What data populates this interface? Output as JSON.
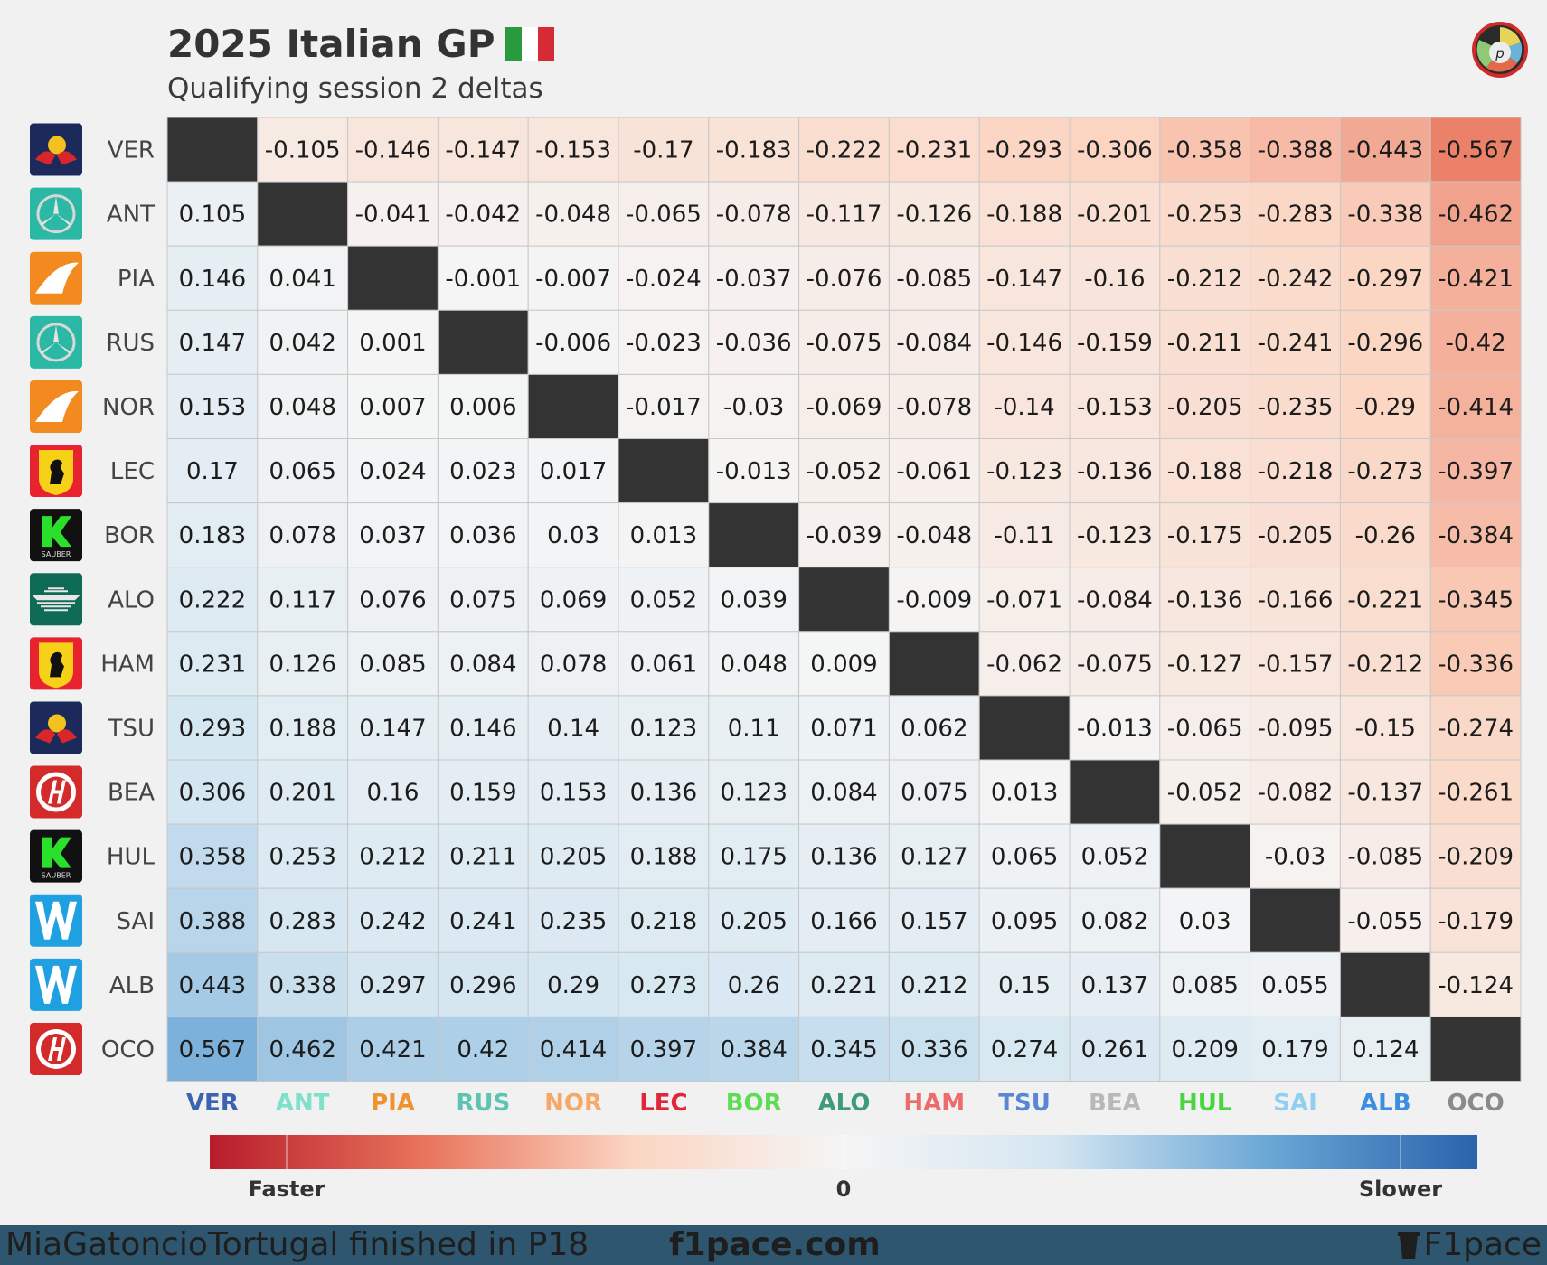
{
  "header": {
    "title": "2025 Italian GP",
    "subtitle": "Qualifying session 2 deltas",
    "flag_colors": [
      "#2a9a3e",
      "#ffffff",
      "#d42b35"
    ]
  },
  "chart_data": {
    "type": "heatmap",
    "title": "2025 Italian GP",
    "subtitle": "Qualifying session 2 deltas",
    "rows": [
      {
        "driver": "VER",
        "team_icon": "red-bull-icon"
      },
      {
        "driver": "ANT",
        "team_icon": "mercedes-icon"
      },
      {
        "driver": "PIA",
        "team_icon": "mclaren-icon"
      },
      {
        "driver": "RUS",
        "team_icon": "mercedes-icon"
      },
      {
        "driver": "NOR",
        "team_icon": "mclaren-icon"
      },
      {
        "driver": "LEC",
        "team_icon": "ferrari-icon"
      },
      {
        "driver": "BOR",
        "team_icon": "sauber-icon"
      },
      {
        "driver": "ALO",
        "team_icon": "aston-martin-icon"
      },
      {
        "driver": "HAM",
        "team_icon": "ferrari-icon"
      },
      {
        "driver": "TSU",
        "team_icon": "red-bull-icon"
      },
      {
        "driver": "BEA",
        "team_icon": "haas-icon"
      },
      {
        "driver": "HUL",
        "team_icon": "sauber-icon"
      },
      {
        "driver": "SAI",
        "team_icon": "williams-icon"
      },
      {
        "driver": "ALB",
        "team_icon": "williams-icon"
      },
      {
        "driver": "OCO",
        "team_icon": "haas-icon"
      }
    ],
    "columns": [
      {
        "driver": "VER",
        "color": "#3b64b0"
      },
      {
        "driver": "ANT",
        "color": "#7fe0cc"
      },
      {
        "driver": "PIA",
        "color": "#f0922e"
      },
      {
        "driver": "RUS",
        "color": "#5ec4b0"
      },
      {
        "driver": "NOR",
        "color": "#f5a867"
      },
      {
        "driver": "LEC",
        "color": "#e0263a"
      },
      {
        "driver": "BOR",
        "color": "#5fdc55"
      },
      {
        "driver": "ALO",
        "color": "#3f9a7a"
      },
      {
        "driver": "HAM",
        "color": "#ee6b6b"
      },
      {
        "driver": "TSU",
        "color": "#5a86d6"
      },
      {
        "driver": "BEA",
        "color": "#b8b8b8"
      },
      {
        "driver": "HUL",
        "color": "#48d640"
      },
      {
        "driver": "SAI",
        "color": "#8fd0f0"
      },
      {
        "driver": "ALB",
        "color": "#3c8fe0"
      },
      {
        "driver": "OCO",
        "color": "#8a8a8a"
      }
    ],
    "values": [
      [
        null,
        -0.105,
        -0.146,
        -0.147,
        -0.153,
        -0.17,
        -0.183,
        -0.222,
        -0.231,
        -0.293,
        -0.306,
        -0.358,
        -0.388,
        -0.443,
        -0.567
      ],
      [
        0.105,
        null,
        -0.041,
        -0.042,
        -0.048,
        -0.065,
        -0.078,
        -0.117,
        -0.126,
        -0.188,
        -0.201,
        -0.253,
        -0.283,
        -0.338,
        -0.462
      ],
      [
        0.146,
        0.041,
        null,
        -0.001,
        -0.007,
        -0.024,
        -0.037,
        -0.076,
        -0.085,
        -0.147,
        -0.16,
        -0.212,
        -0.242,
        -0.297,
        -0.421
      ],
      [
        0.147,
        0.042,
        0.001,
        null,
        -0.006,
        -0.023,
        -0.036,
        -0.075,
        -0.084,
        -0.146,
        -0.159,
        -0.211,
        -0.241,
        -0.296,
        -0.42
      ],
      [
        0.153,
        0.048,
        0.007,
        0.006,
        null,
        -0.017,
        -0.03,
        -0.069,
        -0.078,
        -0.14,
        -0.153,
        -0.205,
        -0.235,
        -0.29,
        -0.414
      ],
      [
        0.17,
        0.065,
        0.024,
        0.023,
        0.017,
        null,
        -0.013,
        -0.052,
        -0.061,
        -0.123,
        -0.136,
        -0.188,
        -0.218,
        -0.273,
        -0.397
      ],
      [
        0.183,
        0.078,
        0.037,
        0.036,
        0.03,
        0.013,
        null,
        -0.039,
        -0.048,
        -0.11,
        -0.123,
        -0.175,
        -0.205,
        -0.26,
        -0.384
      ],
      [
        0.222,
        0.117,
        0.076,
        0.075,
        0.069,
        0.052,
        0.039,
        null,
        -0.009,
        -0.071,
        -0.084,
        -0.136,
        -0.166,
        -0.221,
        -0.345
      ],
      [
        0.231,
        0.126,
        0.085,
        0.084,
        0.078,
        0.061,
        0.048,
        0.009,
        null,
        -0.062,
        -0.075,
        -0.127,
        -0.157,
        -0.212,
        -0.336
      ],
      [
        0.293,
        0.188,
        0.147,
        0.146,
        0.14,
        0.123,
        0.11,
        0.071,
        0.062,
        null,
        -0.013,
        -0.065,
        -0.095,
        -0.15,
        -0.274
      ],
      [
        0.306,
        0.201,
        0.16,
        0.159,
        0.153,
        0.136,
        0.123,
        0.084,
        0.075,
        0.013,
        null,
        -0.052,
        -0.082,
        -0.137,
        -0.261
      ],
      [
        0.358,
        0.253,
        0.212,
        0.211,
        0.205,
        0.188,
        0.175,
        0.136,
        0.127,
        0.065,
        0.052,
        null,
        -0.03,
        -0.085,
        -0.209
      ],
      [
        0.388,
        0.283,
        0.242,
        0.241,
        0.235,
        0.218,
        0.205,
        0.166,
        0.157,
        0.095,
        0.082,
        0.03,
        null,
        -0.055,
        -0.179
      ],
      [
        0.443,
        0.338,
        0.297,
        0.296,
        0.29,
        0.273,
        0.26,
        0.221,
        0.212,
        0.15,
        0.137,
        0.085,
        0.055,
        null,
        -0.124
      ],
      [
        0.567,
        0.462,
        0.421,
        0.42,
        0.414,
        0.397,
        0.384,
        0.345,
        0.336,
        0.274,
        0.261,
        0.209,
        0.179,
        0.124,
        null
      ]
    ],
    "color_range": [
      -0.567,
      0.567
    ],
    "diagonal_color": "#333333",
    "colorbar": {
      "labels": [
        {
          "text": "Faster",
          "value": -0.567
        },
        {
          "text": "0",
          "value": 0
        },
        {
          "text": "Slower",
          "value": 0.567
        }
      ],
      "stops": [
        "#b71c2c",
        "#e8735a",
        "#fbd5c2",
        "#f5f5f5",
        "#d4e6f1",
        "#6ca8d6",
        "#2a63ac"
      ]
    }
  },
  "footer": {
    "note": "MiaGatoncioTortugal finished in P18",
    "site": "f1pace.com",
    "brand": "F1pace"
  }
}
